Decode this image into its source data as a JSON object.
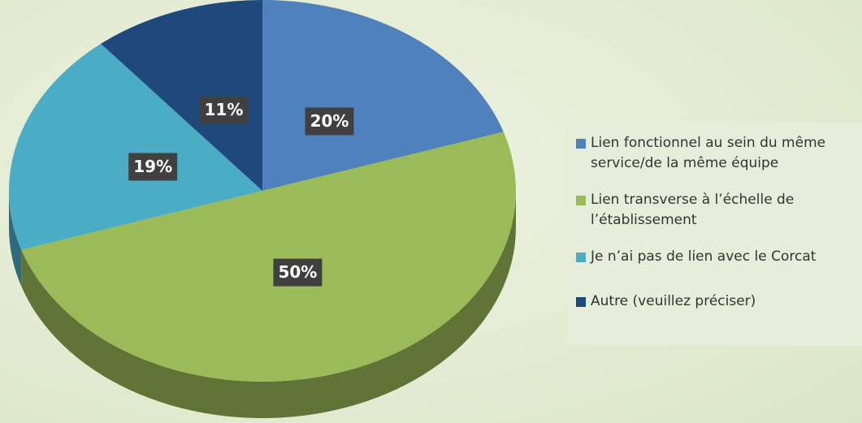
{
  "chart_data": {
    "type": "pie",
    "categories": [
      "Lien fonctionnel au sein du même service/de la même équipe",
      "Lien transverse à l’échelle de l’établissement",
      "Je n’ai pas de lien avec le Corcat",
      "Autre (veuillez préciser)"
    ],
    "values": [
      20,
      50,
      19,
      11
    ],
    "value_labels": [
      "20%",
      "50%",
      "19%",
      "11%"
    ],
    "colors": [
      "#4f81bd",
      "#9bbb59",
      "#4bacc6",
      "#1f497d"
    ],
    "legend": "right"
  }
}
